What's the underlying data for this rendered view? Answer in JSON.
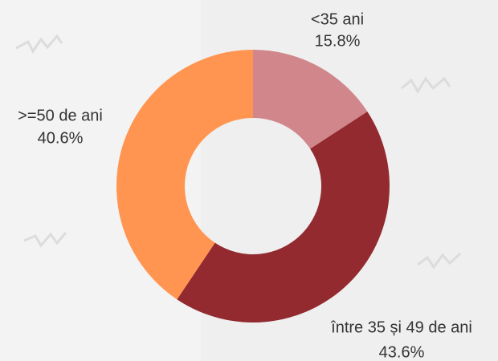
{
  "chart_data": {
    "type": "donut",
    "categories": [
      "<35 ani",
      "între 35 și 49 de ani",
      ">=50 de ani"
    ],
    "values": [
      15.8,
      43.6,
      40.6
    ],
    "value_labels": [
      "15.8%",
      "43.6%",
      "40.6%"
    ],
    "colors": [
      "#d0868a",
      "#922a2f",
      "#ff9550"
    ]
  }
}
